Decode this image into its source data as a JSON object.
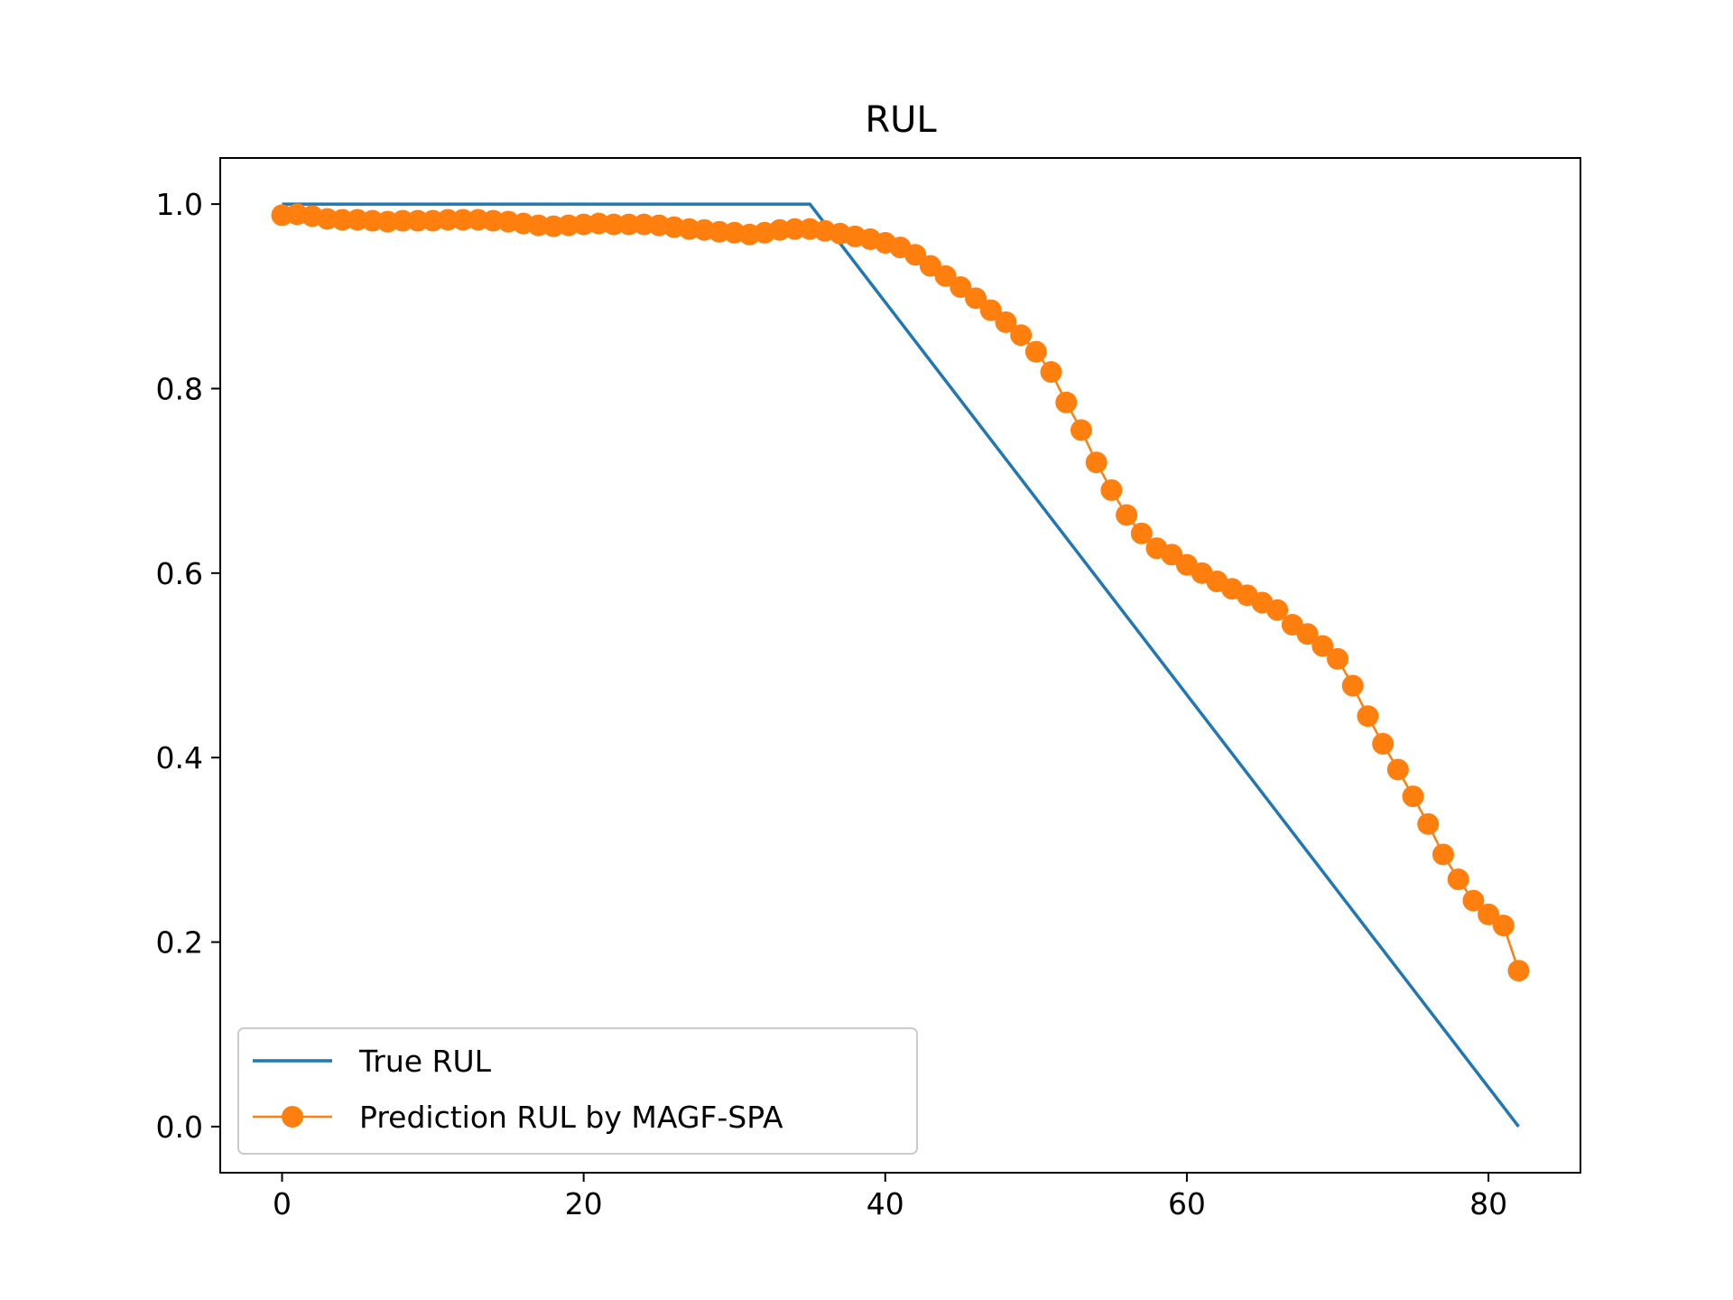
{
  "chart_data": {
    "type": "line",
    "title": "RUL",
    "xlabel": "",
    "ylabel": "",
    "xlim": [
      -4.1,
      86.1
    ],
    "ylim": [
      -0.05,
      1.05
    ],
    "x_ticks": [
      0,
      20,
      40,
      60,
      80
    ],
    "x_tick_labels": [
      "0",
      "20",
      "40",
      "60",
      "80"
    ],
    "y_ticks": [
      0.0,
      0.2,
      0.4,
      0.6,
      0.8,
      1.0
    ],
    "y_tick_labels": [
      "0.0",
      "0.2",
      "0.4",
      "0.6",
      "0.8",
      "1.0"
    ],
    "grid": false,
    "legend_position": "lower-left",
    "series": [
      {
        "name": "True RUL",
        "color": "#1f77b4",
        "marker": "none",
        "x": [
          0,
          35,
          82
        ],
        "y": [
          1.0,
          1.0,
          0.0
        ]
      },
      {
        "name": "Prediction RUL by MAGF-SPA",
        "color": "#ff7f0e",
        "marker": "circle",
        "x": [
          0,
          1,
          2,
          3,
          4,
          5,
          6,
          7,
          8,
          9,
          10,
          11,
          12,
          13,
          14,
          15,
          16,
          17,
          18,
          19,
          20,
          21,
          22,
          23,
          24,
          25,
          26,
          27,
          28,
          29,
          30,
          31,
          32,
          33,
          34,
          35,
          36,
          37,
          38,
          39,
          40,
          41,
          42,
          43,
          44,
          45,
          46,
          47,
          48,
          49,
          50,
          51,
          52,
          53,
          54,
          55,
          56,
          57,
          58,
          59,
          60,
          61,
          62,
          63,
          64,
          65,
          66,
          67,
          68,
          69,
          70,
          71,
          72,
          73,
          74,
          75,
          76,
          77,
          78,
          79,
          80,
          81,
          82
        ],
        "y": [
          0.988,
          0.989,
          0.987,
          0.984,
          0.983,
          0.983,
          0.982,
          0.981,
          0.982,
          0.982,
          0.982,
          0.983,
          0.983,
          0.983,
          0.982,
          0.981,
          0.979,
          0.977,
          0.976,
          0.977,
          0.978,
          0.979,
          0.978,
          0.978,
          0.978,
          0.977,
          0.975,
          0.973,
          0.972,
          0.97,
          0.969,
          0.967,
          0.969,
          0.972,
          0.973,
          0.973,
          0.971,
          0.968,
          0.965,
          0.962,
          0.958,
          0.953,
          0.945,
          0.933,
          0.922,
          0.91,
          0.898,
          0.885,
          0.872,
          0.858,
          0.84,
          0.818,
          0.785,
          0.755,
          0.72,
          0.69,
          0.663,
          0.643,
          0.627,
          0.62,
          0.609,
          0.6,
          0.591,
          0.583,
          0.576,
          0.568,
          0.56,
          0.544,
          0.534,
          0.521,
          0.507,
          0.478,
          0.445,
          0.415,
          0.387,
          0.358,
          0.328,
          0.295,
          0.268,
          0.245,
          0.23,
          0.218,
          0.169
        ]
      }
    ]
  }
}
